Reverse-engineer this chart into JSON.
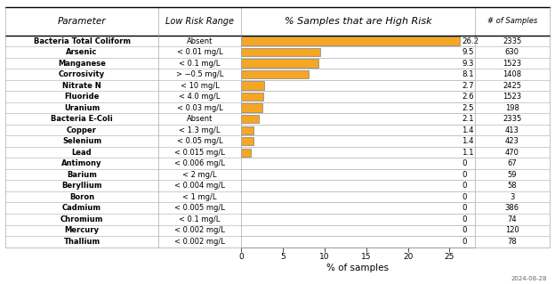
{
  "parameters": [
    "Bacteria Total Coliform",
    "Arsenic",
    "Manganese",
    "Corrosivity",
    "Nitrate N",
    "Fluoride",
    "Uranium",
    "Bacteria E-Coli",
    "Copper",
    "Selenium",
    "Lead",
    "Antimony",
    "Barium",
    "Beryllium",
    "Boron",
    "Cadmium",
    "Chromium",
    "Mercury",
    "Thallium"
  ],
  "low_risk_range": [
    "Absent",
    "< 0.01 mg/L",
    "< 0.1 mg/L",
    "> −0.5 mg/L",
    "< 10 mg/L",
    "< 4.0 mg/L",
    "< 0.03 mg/L",
    "Absent",
    "< 1.3 mg/L",
    "< 0.05 mg/L",
    "< 0.015 mg/L",
    "< 0.006 mg/L",
    "< 2 mg/L",
    "< 0.004 mg/L",
    "< 1 mg/L",
    "< 0.005 mg/L",
    "< 0.1 mg/L",
    "< 0.002 mg/L",
    "< 0.002 mg/L"
  ],
  "pct_high_risk": [
    26.2,
    9.5,
    9.3,
    8.1,
    2.7,
    2.6,
    2.5,
    2.1,
    1.4,
    1.4,
    1.1,
    0,
    0,
    0,
    0,
    0,
    0,
    0,
    0
  ],
  "num_samples": [
    2335,
    630,
    1523,
    1408,
    2425,
    1523,
    198,
    2335,
    413,
    423,
    470,
    67,
    59,
    58,
    3,
    386,
    74,
    120,
    78
  ],
  "bar_color": "#F5A623",
  "bar_edge_color": "#808080",
  "col1_header": "Parameter",
  "col2_header": "Low Risk Range",
  "col3_header": "% Samples that are High Risk",
  "col4_header": "# of Samples",
  "xlabel": "% of samples",
  "xlim": [
    0,
    28
  ],
  "xticks": [
    0,
    5,
    10,
    15,
    20,
    25
  ],
  "date_label": "2024-08-28",
  "background_color": "#ffffff",
  "line_color": "#aaaaaa",
  "text_color": "#000000"
}
